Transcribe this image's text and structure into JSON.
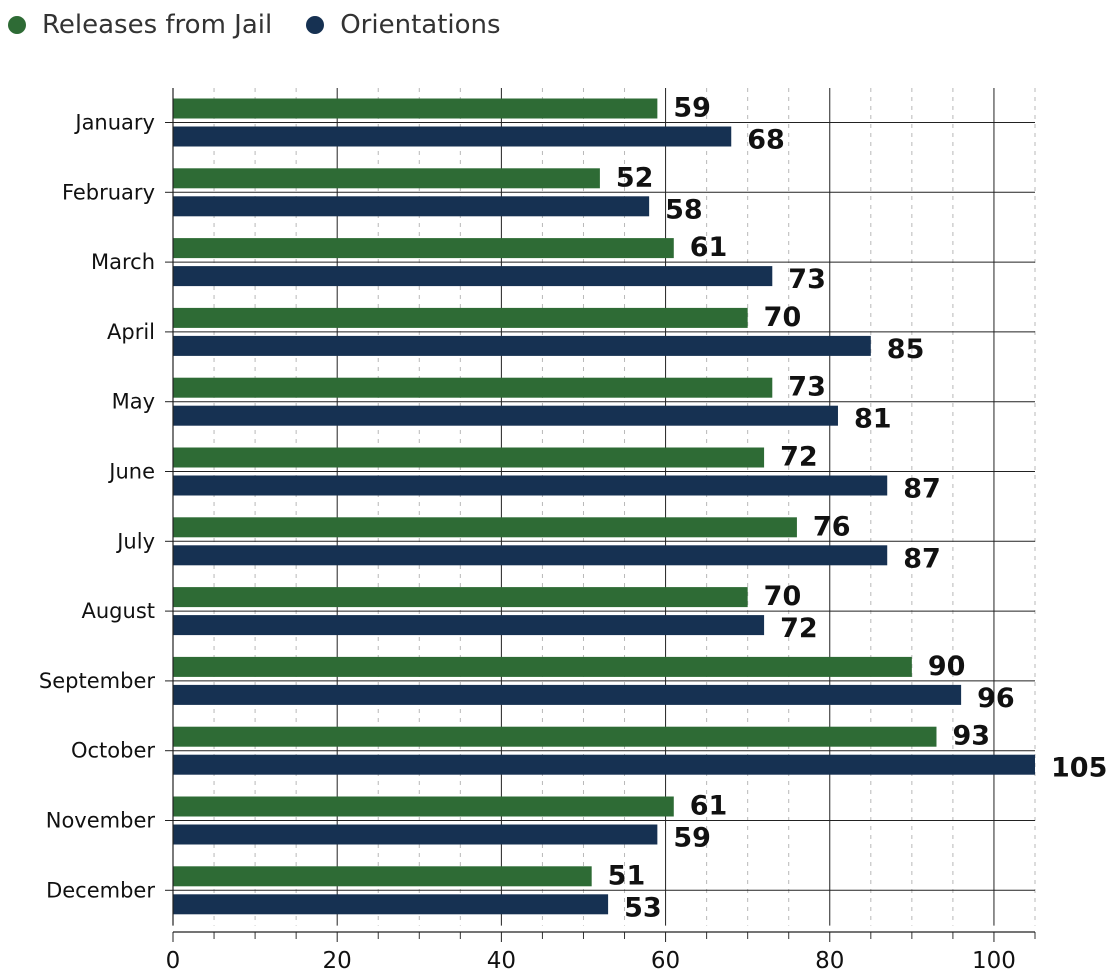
{
  "chart_data": {
    "type": "bar",
    "orientation": "horizontal",
    "categories": [
      "January",
      "February",
      "March",
      "April",
      "May",
      "June",
      "July",
      "August",
      "September",
      "October",
      "November",
      "December"
    ],
    "series": [
      {
        "name": "Releases from Jail",
        "color": "#2e6b35",
        "values": [
          59,
          52,
          61,
          70,
          73,
          72,
          76,
          70,
          90,
          93,
          61,
          51
        ]
      },
      {
        "name": "Orientations",
        "color": "#163152",
        "values": [
          68,
          58,
          73,
          85,
          81,
          87,
          87,
          72,
          96,
          105,
          59,
          53
        ]
      }
    ],
    "xlim": [
      0,
      105
    ],
    "x_ticks": [
      0,
      20,
      40,
      60,
      80,
      100
    ],
    "minor_step": 5,
    "legend_position": "top-left",
    "grid": true,
    "data_labels": true
  }
}
